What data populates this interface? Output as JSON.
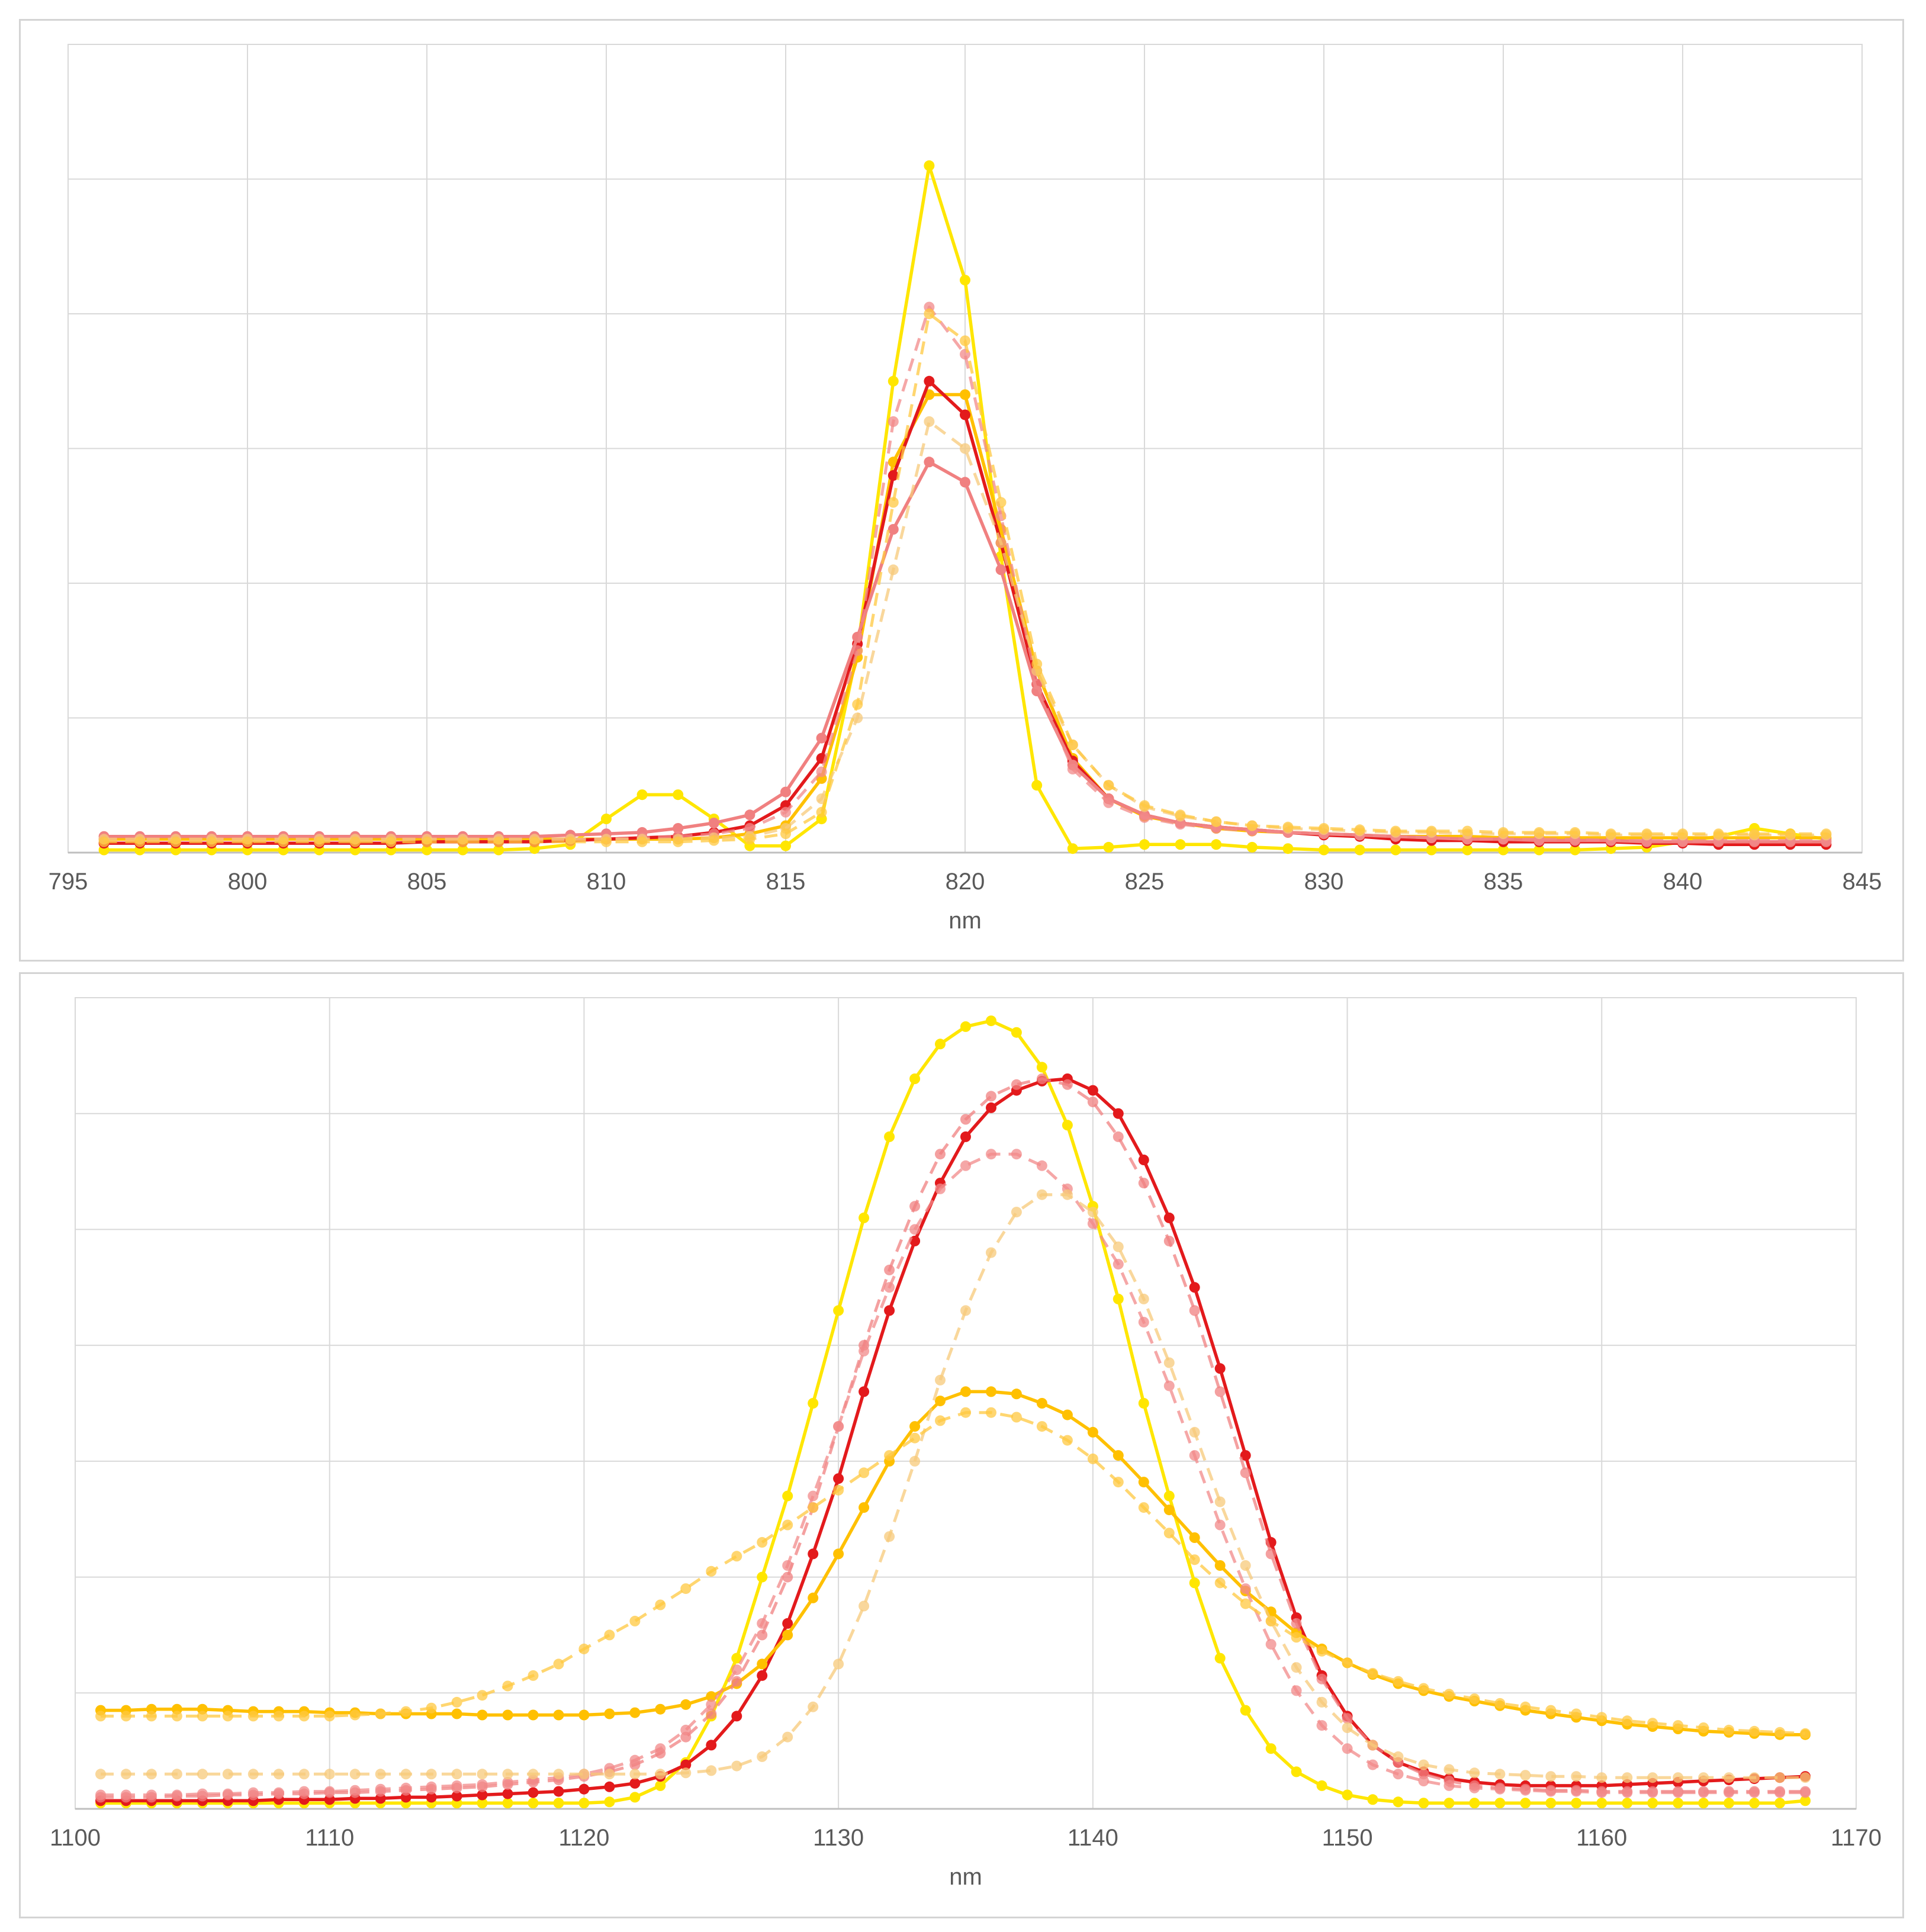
{
  "chart_data": [
    {
      "type": "line",
      "xlabel": "nm",
      "xlim": [
        795,
        845
      ],
      "xticks": [
        "795",
        "800",
        "805",
        "810",
        "815",
        "820",
        "825",
        "830",
        "835",
        "840",
        "845"
      ],
      "ylim": [
        0,
        6
      ],
      "y_gridlines": 6,
      "y_tick_labels_shown": false,
      "grid": true,
      "legend": "none",
      "x": [
        796,
        797,
        798,
        799,
        800,
        801,
        802,
        803,
        804,
        805,
        806,
        807,
        808,
        809,
        810,
        811,
        812,
        813,
        814,
        815,
        816,
        817,
        818,
        819,
        820,
        821,
        822,
        823,
        824,
        825,
        826,
        827,
        828,
        829,
        830,
        831,
        832,
        833,
        834,
        835,
        836,
        837,
        838,
        839,
        840,
        841,
        842,
        843,
        844
      ],
      "series": [
        {
          "color": "#ffe600",
          "line": "solid",
          "values": [
            0.02,
            0.02,
            0.02,
            0.02,
            0.02,
            0.02,
            0.02,
            0.02,
            0.02,
            0.02,
            0.02,
            0.02,
            0.03,
            0.06,
            0.25,
            0.43,
            0.43,
            0.25,
            0.05,
            0.05,
            0.25,
            1.5,
            3.5,
            5.1,
            4.25,
            2.2,
            0.5,
            0.03,
            0.04,
            0.06,
            0.06,
            0.06,
            0.04,
            0.03,
            0.02,
            0.02,
            0.02,
            0.02,
            0.02,
            0.02,
            0.02,
            0.02,
            0.03,
            0.04,
            0.08,
            0.12,
            0.18,
            0.14,
            0.1
          ]
        },
        {
          "color": "#ffc000",
          "line": "solid",
          "values": [
            0.1,
            0.1,
            0.1,
            0.1,
            0.1,
            0.1,
            0.1,
            0.1,
            0.1,
            0.1,
            0.1,
            0.1,
            0.1,
            0.1,
            0.1,
            0.1,
            0.1,
            0.11,
            0.14,
            0.2,
            0.55,
            1.45,
            2.9,
            3.4,
            3.4,
            2.4,
            1.35,
            0.7,
            0.4,
            0.27,
            0.22,
            0.18,
            0.16,
            0.15,
            0.14,
            0.13,
            0.12,
            0.12,
            0.12,
            0.11,
            0.11,
            0.11,
            0.11,
            0.11,
            0.11,
            0.11,
            0.11,
            0.11,
            0.11
          ]
        },
        {
          "color": "#e31a1c",
          "line": "solid",
          "values": [
            0.07,
            0.07,
            0.07,
            0.07,
            0.07,
            0.07,
            0.07,
            0.07,
            0.07,
            0.08,
            0.08,
            0.08,
            0.08,
            0.09,
            0.1,
            0.11,
            0.12,
            0.15,
            0.2,
            0.35,
            0.7,
            1.55,
            2.8,
            3.5,
            3.25,
            2.3,
            1.25,
            0.68,
            0.4,
            0.28,
            0.22,
            0.19,
            0.17,
            0.15,
            0.13,
            0.12,
            0.1,
            0.09,
            0.09,
            0.08,
            0.08,
            0.08,
            0.08,
            0.07,
            0.07,
            0.06,
            0.06,
            0.06,
            0.06
          ]
        },
        {
          "color": "#f08080",
          "line": "solid",
          "values": [
            0.12,
            0.12,
            0.12,
            0.12,
            0.12,
            0.12,
            0.12,
            0.12,
            0.12,
            0.12,
            0.12,
            0.12,
            0.12,
            0.13,
            0.14,
            0.15,
            0.18,
            0.22,
            0.28,
            0.45,
            0.85,
            1.6,
            2.4,
            2.9,
            2.75,
            2.1,
            1.2,
            0.65,
            0.4,
            0.28,
            0.22,
            0.19,
            0.17,
            0.15,
            0.14,
            0.13,
            0.12,
            0.11,
            0.1,
            0.1,
            0.09,
            0.09,
            0.09,
            0.08,
            0.08,
            0.08,
            0.08,
            0.08,
            0.08
          ]
        },
        {
          "color": "#f28a8a",
          "line": "dashed",
          "values": [
            0.1,
            0.1,
            0.1,
            0.1,
            0.1,
            0.1,
            0.1,
            0.1,
            0.1,
            0.1,
            0.1,
            0.1,
            0.1,
            0.1,
            0.1,
            0.11,
            0.12,
            0.14,
            0.18,
            0.3,
            0.6,
            1.5,
            3.2,
            4.05,
            3.7,
            2.5,
            1.25,
            0.62,
            0.37,
            0.26,
            0.21,
            0.18,
            0.16,
            0.15,
            0.14,
            0.13,
            0.12,
            0.11,
            0.1,
            0.1,
            0.1,
            0.1,
            0.09,
            0.09,
            0.09,
            0.09,
            0.09,
            0.09,
            0.09
          ]
        },
        {
          "color": "#f7c97a",
          "line": "dashed",
          "values": [
            0.1,
            0.1,
            0.1,
            0.1,
            0.1,
            0.1,
            0.1,
            0.1,
            0.1,
            0.1,
            0.1,
            0.1,
            0.1,
            0.1,
            0.1,
            0.1,
            0.1,
            0.11,
            0.12,
            0.18,
            0.4,
            1.0,
            2.1,
            3.2,
            3.0,
            2.3,
            1.35,
            0.8,
            0.5,
            0.34,
            0.27,
            0.23,
            0.2,
            0.18,
            0.17,
            0.16,
            0.15,
            0.15,
            0.14,
            0.14,
            0.14,
            0.14,
            0.13,
            0.13,
            0.13,
            0.13,
            0.13,
            0.13,
            0.13
          ]
        },
        {
          "color": "#ffc840",
          "line": "dashed",
          "values": [
            0.08,
            0.08,
            0.08,
            0.08,
            0.08,
            0.08,
            0.08,
            0.08,
            0.08,
            0.08,
            0.08,
            0.08,
            0.08,
            0.08,
            0.08,
            0.08,
            0.08,
            0.09,
            0.1,
            0.14,
            0.3,
            1.1,
            2.6,
            4.0,
            3.8,
            2.6,
            1.4,
            0.8,
            0.5,
            0.35,
            0.28,
            0.23,
            0.2,
            0.19,
            0.18,
            0.17,
            0.16,
            0.16,
            0.16,
            0.15,
            0.15,
            0.15,
            0.14,
            0.14,
            0.14,
            0.14,
            0.14,
            0.14,
            0.14
          ]
        }
      ]
    },
    {
      "type": "line",
      "xlabel": "nm",
      "xlim": [
        1100,
        1170
      ],
      "xticks": [
        "1100",
        "1110",
        "1120",
        "1130",
        "1140",
        "1150",
        "1160",
        "1170"
      ],
      "ylim": [
        0,
        7
      ],
      "y_gridlines": 7,
      "y_tick_labels_shown": false,
      "grid": true,
      "legend": "none",
      "x_start": 1101,
      "x_step": 1,
      "series": [
        {
          "color": "#ffe600",
          "line": "solid",
          "values": [
            0.05,
            0.05,
            0.05,
            0.05,
            0.05,
            0.05,
            0.05,
            0.05,
            0.05,
            0.05,
            0.05,
            0.05,
            0.05,
            0.05,
            0.05,
            0.05,
            0.05,
            0.05,
            0.05,
            0.05,
            0.06,
            0.1,
            0.2,
            0.4,
            0.8,
            1.3,
            2.0,
            2.7,
            3.5,
            4.3,
            5.1,
            5.8,
            6.3,
            6.6,
            6.75,
            6.8,
            6.7,
            6.4,
            5.9,
            5.2,
            4.4,
            3.5,
            2.7,
            1.95,
            1.3,
            0.85,
            0.52,
            0.32,
            0.2,
            0.12,
            0.08,
            0.06,
            0.05,
            0.05,
            0.05,
            0.05,
            0.05,
            0.05,
            0.05,
            0.05,
            0.05,
            0.05,
            0.05,
            0.05,
            0.05,
            0.05,
            0.05,
            0.07
          ]
        },
        {
          "color": "#e31a1c",
          "line": "solid",
          "values": [
            0.07,
            0.07,
            0.07,
            0.07,
            0.07,
            0.07,
            0.07,
            0.08,
            0.08,
            0.08,
            0.09,
            0.09,
            0.1,
            0.1,
            0.11,
            0.12,
            0.13,
            0.14,
            0.15,
            0.17,
            0.19,
            0.22,
            0.28,
            0.38,
            0.55,
            0.8,
            1.15,
            1.6,
            2.2,
            2.85,
            3.6,
            4.3,
            4.9,
            5.4,
            5.8,
            6.05,
            6.2,
            6.28,
            6.3,
            6.2,
            6.0,
            5.6,
            5.1,
            4.5,
            3.8,
            3.05,
            2.3,
            1.65,
            1.15,
            0.8,
            0.55,
            0.4,
            0.32,
            0.26,
            0.23,
            0.21,
            0.2,
            0.2,
            0.2,
            0.2,
            0.21,
            0.22,
            0.23,
            0.24,
            0.25,
            0.26,
            0.27,
            0.28
          ]
        },
        {
          "color": "#ffc000",
          "line": "solid",
          "values": [
            0.85,
            0.85,
            0.86,
            0.86,
            0.86,
            0.85,
            0.84,
            0.84,
            0.84,
            0.83,
            0.83,
            0.82,
            0.82,
            0.82,
            0.82,
            0.81,
            0.81,
            0.81,
            0.81,
            0.81,
            0.82,
            0.83,
            0.86,
            0.9,
            0.97,
            1.08,
            1.25,
            1.5,
            1.82,
            2.2,
            2.6,
            3.0,
            3.3,
            3.52,
            3.6,
            3.6,
            3.58,
            3.5,
            3.4,
            3.25,
            3.05,
            2.82,
            2.58,
            2.34,
            2.1,
            1.88,
            1.7,
            1.52,
            1.38,
            1.26,
            1.16,
            1.08,
            1.02,
            0.97,
            0.93,
            0.89,
            0.85,
            0.82,
            0.79,
            0.76,
            0.73,
            0.71,
            0.69,
            0.67,
            0.66,
            0.65,
            0.64,
            0.64
          ]
        },
        {
          "color": "#f08080",
          "line": "dashed",
          "values": [
            0.1,
            0.1,
            0.1,
            0.11,
            0.11,
            0.12,
            0.12,
            0.13,
            0.13,
            0.14,
            0.14,
            0.15,
            0.16,
            0.17,
            0.18,
            0.19,
            0.21,
            0.23,
            0.25,
            0.28,
            0.32,
            0.38,
            0.48,
            0.62,
            0.82,
            1.1,
            1.5,
            2.0,
            2.6,
            3.3,
            4.0,
            4.65,
            5.2,
            5.65,
            5.95,
            6.15,
            6.25,
            6.3,
            6.25,
            6.1,
            5.8,
            5.4,
            4.9,
            4.3,
            3.6,
            2.9,
            2.2,
            1.6,
            1.12,
            0.78,
            0.55,
            0.4,
            0.3,
            0.24,
            0.2,
            0.18,
            0.17,
            0.16,
            0.16,
            0.15,
            0.15,
            0.15,
            0.15,
            0.15,
            0.15,
            0.15,
            0.15,
            0.15
          ]
        },
        {
          "color": "#f28a8a",
          "line": "dashed",
          "values": [
            0.12,
            0.12,
            0.12,
            0.12,
            0.13,
            0.13,
            0.14,
            0.14,
            0.15,
            0.15,
            0.16,
            0.17,
            0.18,
            0.19,
            0.2,
            0.21,
            0.23,
            0.25,
            0.27,
            0.3,
            0.35,
            0.42,
            0.52,
            0.68,
            0.9,
            1.2,
            1.6,
            2.1,
            2.7,
            3.3,
            3.95,
            4.5,
            5.0,
            5.35,
            5.55,
            5.65,
            5.65,
            5.55,
            5.35,
            5.05,
            4.7,
            4.2,
            3.65,
            3.05,
            2.45,
            1.9,
            1.42,
            1.02,
            0.72,
            0.52,
            0.38,
            0.3,
            0.24,
            0.2,
            0.18,
            0.17,
            0.16,
            0.15,
            0.15,
            0.14,
            0.14,
            0.14,
            0.14,
            0.14,
            0.14,
            0.14,
            0.14,
            0.14
          ]
        },
        {
          "color": "#f7c97a",
          "line": "dashed",
          "values": [
            0.3,
            0.3,
            0.3,
            0.3,
            0.3,
            0.3,
            0.3,
            0.3,
            0.3,
            0.3,
            0.3,
            0.3,
            0.3,
            0.3,
            0.3,
            0.3,
            0.3,
            0.3,
            0.3,
            0.3,
            0.3,
            0.3,
            0.3,
            0.31,
            0.33,
            0.37,
            0.45,
            0.62,
            0.88,
            1.25,
            1.75,
            2.35,
            3.0,
            3.7,
            4.3,
            4.8,
            5.15,
            5.3,
            5.3,
            5.15,
            4.85,
            4.4,
            3.85,
            3.25,
            2.65,
            2.1,
            1.62,
            1.22,
            0.92,
            0.7,
            0.55,
            0.45,
            0.38,
            0.34,
            0.31,
            0.3,
            0.29,
            0.28,
            0.28,
            0.27,
            0.27,
            0.27,
            0.27,
            0.27,
            0.27,
            0.27,
            0.27,
            0.27
          ]
        },
        {
          "color": "#ffc840",
          "line": "dashed",
          "values": [
            0.8,
            0.8,
            0.8,
            0.8,
            0.8,
            0.8,
            0.8,
            0.8,
            0.8,
            0.8,
            0.81,
            0.82,
            0.84,
            0.87,
            0.92,
            0.98,
            1.06,
            1.15,
            1.25,
            1.38,
            1.5,
            1.62,
            1.76,
            1.9,
            2.05,
            2.18,
            2.3,
            2.45,
            2.6,
            2.75,
            2.9,
            3.05,
            3.2,
            3.35,
            3.42,
            3.42,
            3.38,
            3.3,
            3.18,
            3.02,
            2.82,
            2.6,
            2.38,
            2.15,
            1.95,
            1.77,
            1.62,
            1.48,
            1.36,
            1.26,
            1.17,
            1.1,
            1.04,
            0.99,
            0.95,
            0.91,
            0.88,
            0.85,
            0.82,
            0.79,
            0.76,
            0.74,
            0.72,
            0.7,
            0.68,
            0.67,
            0.66,
            0.65
          ]
        }
      ]
    }
  ]
}
